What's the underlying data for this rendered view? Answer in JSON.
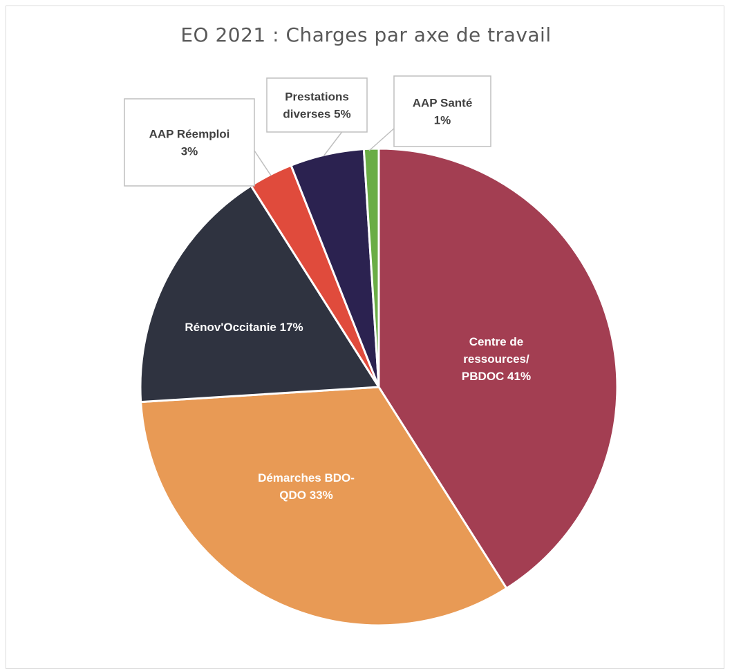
{
  "chart_data": {
    "type": "pie",
    "title": "EO 2021 : Charges par axe de travail",
    "series": [
      {
        "name": "Centre de ressources/ PBDOC",
        "value": 41,
        "label_lines": [
          "Centre de",
          "ressources/",
          "PBDOC 41%"
        ],
        "color": "#a33e52",
        "label_color": "#ffffff",
        "callout": false
      },
      {
        "name": "Démarches BDO-QDO",
        "value": 33,
        "label_lines": [
          "Démarches BDO-",
          "QDO 33%"
        ],
        "color": "#e89a55",
        "label_color": "#ffffff",
        "callout": false
      },
      {
        "name": "Rénov'Occitanie",
        "value": 17,
        "label_lines": [
          "Rénov'Occitanie 17%"
        ],
        "color": "#2f3340",
        "label_color": "#ffffff",
        "callout": false
      },
      {
        "name": "AAP Réemploi",
        "value": 3,
        "label_lines": [
          "AAP Réemploi",
          "3%"
        ],
        "color": "#e04b3c",
        "label_color": "#404040",
        "callout": true
      },
      {
        "name": "Prestations diverses",
        "value": 5,
        "label_lines": [
          "Prestations",
          "diverses 5%"
        ],
        "color": "#2b2250",
        "label_color": "#404040",
        "callout": true
      },
      {
        "name": "AAP Santé",
        "value": 1,
        "label_lines": [
          "AAP Santé",
          "1%"
        ],
        "color": "#6aad45",
        "label_color": "#404040",
        "callout": true
      }
    ]
  }
}
